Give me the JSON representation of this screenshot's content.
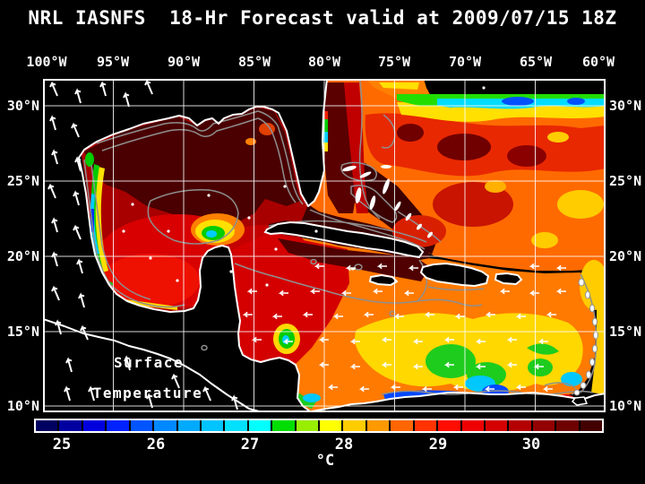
{
  "title": "NRL IASNFS  18-Hr Forecast valid at 2009/07/15 18Z",
  "axes": {
    "top": [
      "100°W",
      "95°W",
      "90°W",
      "85°W",
      "80°W",
      "75°W",
      "70°W",
      "65°W",
      "60°W"
    ],
    "left": [
      "30°N",
      "25°N",
      "20°N",
      "15°N",
      "10°N"
    ],
    "right": [
      "30°N",
      "25°N",
      "20°N",
      "15°N",
      "10°N"
    ]
  },
  "map_annotation": {
    "line1": "Surface",
    "line2": "Temperature"
  },
  "colorbar": {
    "unit": "°C",
    "tick_labels": [
      "25",
      "26",
      "27",
      "28",
      "29",
      "30"
    ],
    "cells": [
      "#000060",
      "#0000a0",
      "#0000dd",
      "#0022ff",
      "#0055ff",
      "#0088ff",
      "#00aaff",
      "#00c4ff",
      "#00e0ff",
      "#00ffff",
      "#00dd00",
      "#99ee00",
      "#ffff00",
      "#ffcc00",
      "#ff9900",
      "#ff6600",
      "#ff3300",
      "#ff0d00",
      "#ee0000",
      "#d40000",
      "#b40000",
      "#920000",
      "#6e0000",
      "#420000"
    ]
  },
  "chart_data": {
    "type": "heatmap",
    "title": "NRL IASNFS  18-Hr Forecast valid at 2009/07/15 18Z",
    "variable": "Surface Temperature",
    "unit": "°C",
    "colorbar_tick_values": [
      25,
      26,
      27,
      28,
      29,
      30
    ],
    "colorbar_cell_step_c": 0.25,
    "lon_ticks_deg_w": [
      100,
      95,
      90,
      85,
      80,
      75,
      70,
      65,
      60
    ],
    "lat_ticks_deg_n": [
      30,
      25,
      20,
      15,
      10
    ],
    "grid": true,
    "legend_position": "bottom"
  },
  "colors": {
    "background": "#000000",
    "grid": "#ffffff",
    "coastline": "#ffffff",
    "bathymetry_contour": "#8f8f8f",
    "wind_vector": "#ffffff"
  }
}
